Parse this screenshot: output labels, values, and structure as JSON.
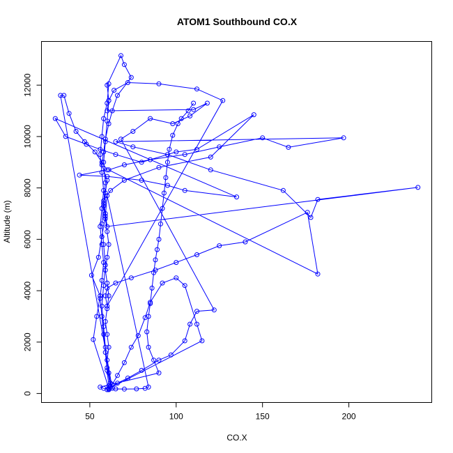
{
  "chart_data": {
    "type": "line",
    "title": "ATOM1 Southbound CO.X",
    "xlabel": "CO.X",
    "ylabel": "Altitude (m)",
    "xlim": [
      22,
      248
    ],
    "ylim": [
      -350,
      13700
    ],
    "x_ticks": [
      50,
      100,
      150,
      200
    ],
    "y_ticks": [
      0,
      2000,
      4000,
      6000,
      8000,
      10000,
      12000
    ],
    "grid": false,
    "legend": "none",
    "series_color": "#0000ff",
    "marker": "open-circle",
    "series": [
      {
        "points": [
          [
            61,
            12050
          ],
          [
            60,
            11300
          ],
          [
            58,
            10700
          ],
          [
            57,
            10000
          ],
          [
            56,
            9300
          ],
          [
            57,
            8600
          ],
          [
            58,
            7900
          ],
          [
            57,
            7200
          ],
          [
            56,
            6500
          ],
          [
            57,
            5800
          ],
          [
            58,
            5100
          ],
          [
            57,
            4400
          ],
          [
            56,
            3700
          ],
          [
            57,
            3000
          ],
          [
            58,
            2300
          ],
          [
            59,
            1600
          ],
          [
            60,
            900
          ],
          [
            61,
            300
          ],
          [
            61,
            150
          ],
          [
            62,
            250
          ],
          [
            60,
            1000
          ],
          [
            59,
            1800
          ],
          [
            58,
            2600
          ],
          [
            57,
            3400
          ],
          [
            58,
            4200
          ],
          [
            59,
            5000
          ],
          [
            58,
            5800
          ],
          [
            57,
            6600
          ],
          [
            58,
            7400
          ],
          [
            59,
            8200
          ],
          [
            58,
            9000
          ],
          [
            59,
            9800
          ],
          [
            60,
            10600
          ],
          [
            61,
            11400
          ],
          [
            60,
            12000
          ],
          [
            68,
            13150
          ],
          [
            70,
            12800
          ],
          [
            74,
            12300
          ],
          [
            66,
            11600
          ],
          [
            63,
            11000
          ],
          [
            61,
            10500
          ],
          [
            59,
            9900
          ],
          [
            58,
            9400
          ],
          [
            57,
            8900
          ],
          [
            60,
            8300
          ],
          [
            59,
            7800
          ],
          [
            58,
            7300
          ],
          [
            59,
            6800
          ],
          [
            60,
            6300
          ],
          [
            61,
            5800
          ],
          [
            60,
            5300
          ],
          [
            59,
            4800
          ],
          [
            60,
            4300
          ],
          [
            61,
            3800
          ],
          [
            60,
            3300
          ],
          [
            59,
            2800
          ],
          [
            60,
            2300
          ],
          [
            61,
            1800
          ],
          [
            60,
            1300
          ],
          [
            61,
            800
          ],
          [
            62,
            400
          ],
          [
            63,
            200
          ],
          [
            33,
            11600
          ],
          [
            35,
            11600
          ],
          [
            38,
            10900
          ],
          [
            42,
            10200
          ],
          [
            47,
            9800
          ],
          [
            53,
            9400
          ],
          [
            57,
            9000
          ],
          [
            60,
            8700
          ],
          [
            44,
            8500
          ],
          [
            60,
            8450
          ],
          [
            80,
            8300
          ],
          [
            95,
            8100
          ],
          [
            105,
            7900
          ],
          [
            135,
            7650
          ],
          [
            30,
            10700
          ],
          [
            36,
            10000
          ],
          [
            48,
            9700
          ],
          [
            56,
            9500
          ],
          [
            65,
            9300
          ],
          [
            80,
            9000
          ],
          [
            100,
            9400
          ],
          [
            112,
            9500
          ],
          [
            145,
            10850
          ],
          [
            120,
            9200
          ],
          [
            90,
            8800
          ],
          [
            70,
            8300
          ],
          [
            62,
            7900
          ],
          [
            58,
            7500
          ],
          [
            59,
            7000
          ],
          [
            60,
            6500
          ],
          [
            240,
            8020
          ],
          [
            182,
            7550
          ],
          [
            178,
            6850
          ],
          [
            162,
            7900
          ],
          [
            120,
            8700
          ],
          [
            95,
            9300
          ],
          [
            75,
            9600
          ],
          [
            65,
            9800
          ],
          [
            197,
            9950
          ],
          [
            165,
            9580
          ],
          [
            150,
            9950
          ],
          [
            125,
            9600
          ],
          [
            105,
            9300
          ],
          [
            85,
            9100
          ],
          [
            70,
            8900
          ],
          [
            61,
            8700
          ],
          [
            182,
            4650
          ],
          [
            176,
            7050
          ],
          [
            140,
            5900
          ],
          [
            125,
            5750
          ],
          [
            112,
            5400
          ],
          [
            100,
            5100
          ],
          [
            88,
            4800
          ],
          [
            74,
            4500
          ],
          [
            65,
            4300
          ],
          [
            60,
            4100
          ],
          [
            59,
            3800
          ],
          [
            60,
            3400
          ],
          [
            127,
            11400
          ],
          [
            112,
            11850
          ],
          [
            90,
            12050
          ],
          [
            72,
            12100
          ],
          [
            64,
            11800
          ],
          [
            61,
            11400
          ],
          [
            60,
            11000
          ],
          [
            110,
            11050
          ],
          [
            118,
            11300
          ],
          [
            108,
            10800
          ],
          [
            98,
            10500
          ],
          [
            85,
            10700
          ],
          [
            75,
            10200
          ],
          [
            68,
            9900
          ],
          [
            122,
            3250
          ],
          [
            112,
            3200
          ],
          [
            108,
            2700
          ],
          [
            105,
            2050
          ],
          [
            97,
            1500
          ],
          [
            90,
            1300
          ],
          [
            80,
            900
          ],
          [
            72,
            600
          ],
          [
            66,
            400
          ],
          [
            62,
            250
          ],
          [
            60,
            150
          ],
          [
            115,
            2050
          ],
          [
            112,
            2700
          ],
          [
            105,
            4200
          ],
          [
            100,
            4500
          ],
          [
            92,
            4300
          ],
          [
            85,
            3550
          ],
          [
            82,
            2950
          ],
          [
            78,
            2250
          ],
          [
            74,
            1800
          ],
          [
            70,
            1200
          ],
          [
            66,
            700
          ],
          [
            63,
            350
          ],
          [
            61,
            200
          ],
          [
            52,
            2100
          ],
          [
            54,
            3000
          ],
          [
            56,
            3800
          ],
          [
            51,
            4600
          ],
          [
            55,
            5300
          ],
          [
            57,
            6100
          ],
          [
            59,
            6900
          ],
          [
            60,
            7700
          ],
          [
            84,
            250
          ],
          [
            82,
            200
          ],
          [
            77,
            180
          ],
          [
            70,
            170
          ],
          [
            65,
            180
          ],
          [
            61,
            170
          ],
          [
            58,
            200
          ],
          [
            56,
            250
          ],
          [
            90,
            800
          ],
          [
            87,
            1300
          ],
          [
            84,
            1800
          ],
          [
            83,
            2400
          ],
          [
            84,
            3000
          ],
          [
            85,
            3500
          ],
          [
            86,
            4100
          ],
          [
            87,
            4700
          ],
          [
            88,
            5200
          ],
          [
            89,
            5600
          ],
          [
            90,
            6000
          ],
          [
            91,
            6600
          ],
          [
            92,
            7200
          ],
          [
            93,
            7800
          ],
          [
            94,
            8400
          ],
          [
            95,
            9000
          ],
          [
            96,
            9500
          ],
          [
            98,
            10050
          ],
          [
            101,
            10500
          ],
          [
            103,
            10700
          ],
          [
            107,
            11000
          ],
          [
            110,
            11300
          ]
        ]
      }
    ]
  }
}
